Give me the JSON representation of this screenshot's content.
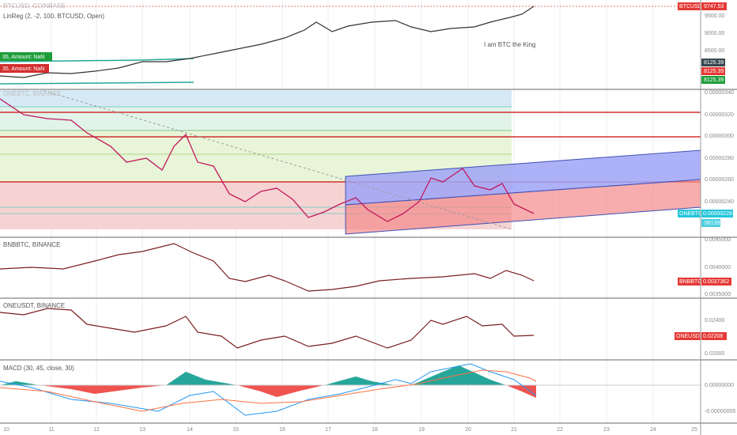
{
  "btc_pane": {
    "symbol": "BTCUSD, COINBASE",
    "indicator": "LinReg (2, -2, 100, BTCUSD, Open)",
    "annotation": "I am BTC the King",
    "axis": [
      "9500.00",
      "9000.00",
      "8500.00"
    ],
    "badge_symbol": "BTCUSD",
    "badge_price": "9747.53",
    "levels": [
      "8125.39",
      "8125.39",
      "8125.39"
    ],
    "orders": [
      "35, Amount: NaN",
      "35, Amount: NaN"
    ]
  },
  "one_btc_pane": {
    "symbol": "ONEBTC, BINANCE",
    "axis": [
      "0.00000340",
      "0.00000320",
      "0.00000300",
      "0.00000280",
      "0.00000260",
      "0.00000240"
    ],
    "badge_symbol": "ONEBTC",
    "badge_price": "0.00000228",
    "volume": "58139"
  },
  "bnb_pane": {
    "symbol": "BNBBTC, BINANCE",
    "axis": [
      "0.0045000",
      "0.0040000",
      "0.0035000"
    ],
    "badge_symbol": "BNBBTC",
    "badge_price": "0.0037362"
  },
  "one_usdt_pane": {
    "symbol": "ONEUSDT, BINANCE",
    "axis": [
      "0.02400",
      "0.02000"
    ],
    "badge_symbol": "ONEUSDT",
    "badge_price": "0.02208"
  },
  "macd_pane": {
    "indicator": "MACD (30, 45, close, 30)",
    "axis": [
      "0.00000000",
      "-0.00000005"
    ]
  },
  "time_axis": [
    "10",
    "11",
    "12",
    "13",
    "14",
    "15",
    "16",
    "17",
    "18",
    "19",
    "20",
    "21",
    "22",
    "23",
    "24",
    "25"
  ]
}
